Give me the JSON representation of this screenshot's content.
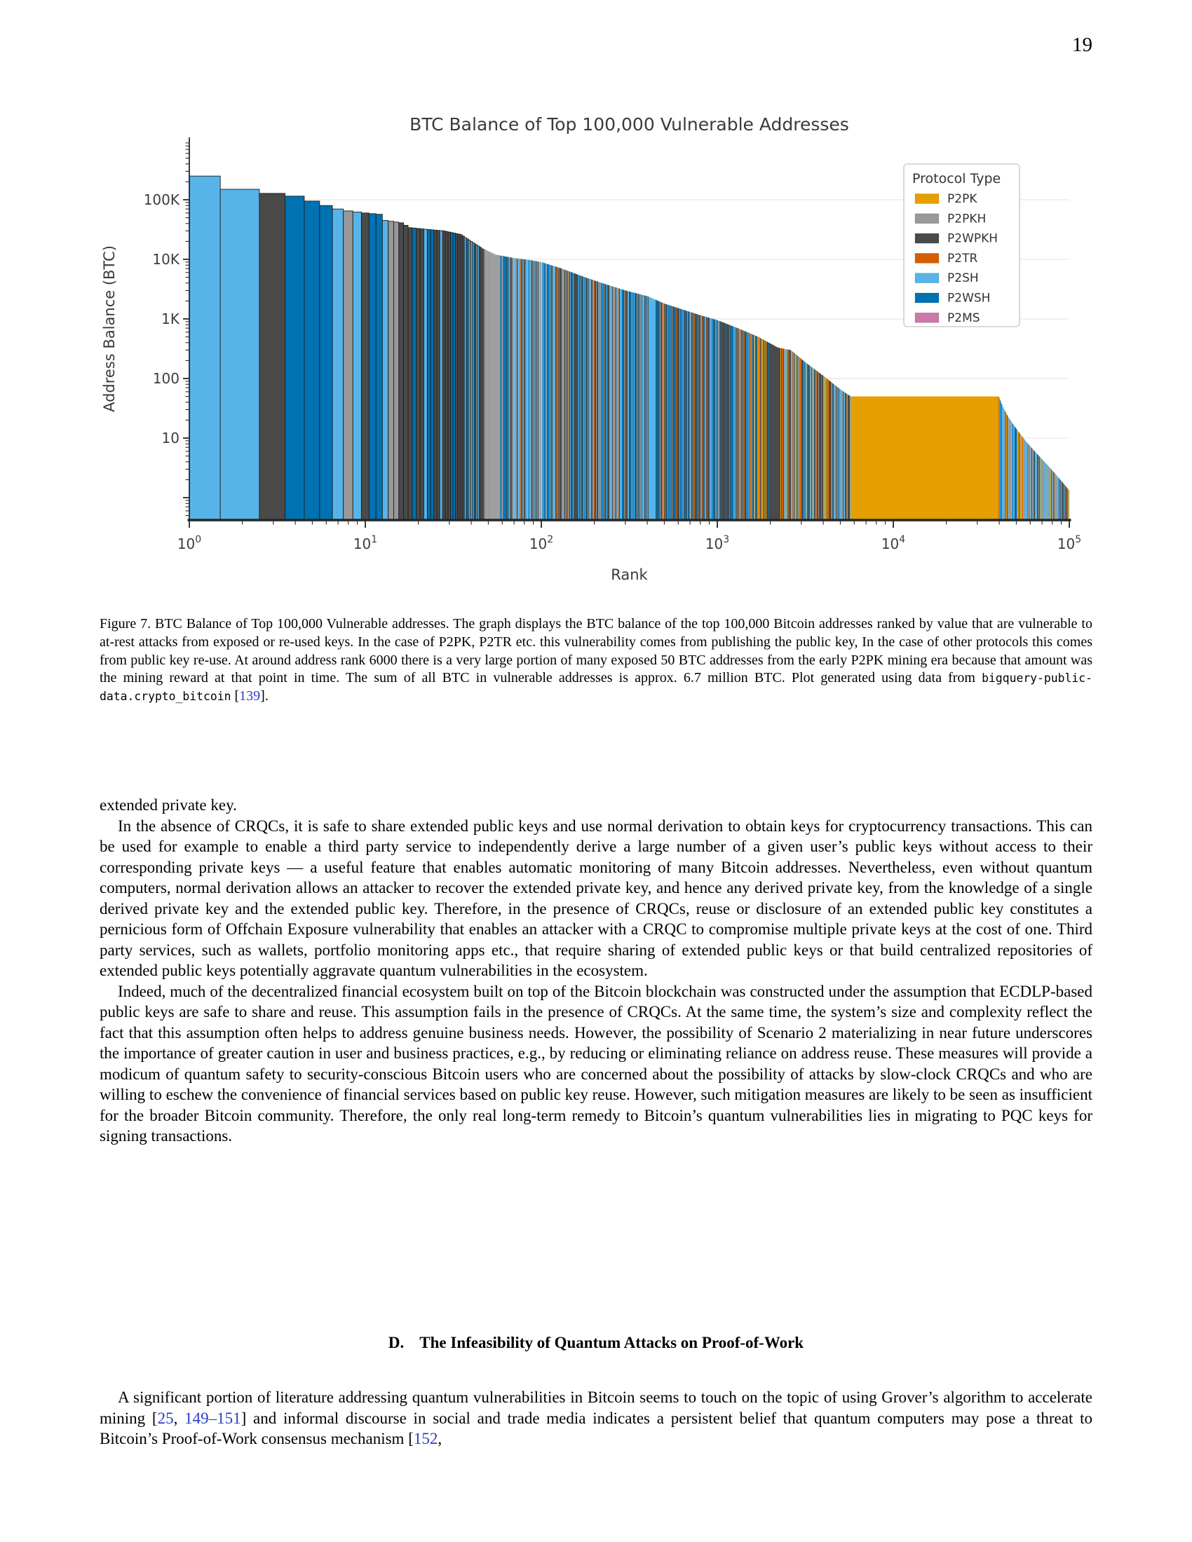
{
  "page": {
    "number": "19"
  },
  "colors": {
    "link": "#2b3cc8",
    "chart_text": "#3a3a3a",
    "tick_text": "#3d3d3d",
    "grid": "#e7e7e7",
    "spine": "#262626"
  },
  "chart_data": {
    "type": "bar",
    "title": "BTC Balance of Top 100,000 Vulnerable Addresses",
    "xlabel": "Rank",
    "ylabel": "Address Balance (BTC)",
    "x_scale": "log",
    "y_scale": "log",
    "x_range": [
      1,
      100000
    ],
    "x_tick_exponents": [
      0,
      1,
      2,
      3,
      4,
      5
    ],
    "y_ticks": [
      {
        "label": "100K",
        "value": 100000
      },
      {
        "label": "10K",
        "value": 10000
      },
      {
        "label": "1K",
        "value": 1000
      },
      {
        "label": "100",
        "value": 100
      },
      {
        "label": "10",
        "value": 10
      }
    ],
    "grid": "horizontal-major",
    "legend": {
      "title": "Protocol Type",
      "position": "upper-right",
      "entries": [
        {
          "label": "P2PK",
          "color": "#E69F00"
        },
        {
          "label": "P2PKH",
          "color": "#999999"
        },
        {
          "label": "P2WPKH",
          "color": "#4A4A4A"
        },
        {
          "label": "P2TR",
          "color": "#D55E00"
        },
        {
          "label": "P2SH",
          "color": "#56B4E9"
        },
        {
          "label": "P2WSH",
          "color": "#0072B2"
        },
        {
          "label": "P2MS",
          "color": "#CC79A7"
        }
      ]
    },
    "envelope_rank_btc": [
      [
        1,
        250000
      ],
      [
        2,
        150000
      ],
      [
        3,
        128000
      ],
      [
        4,
        115000
      ],
      [
        5,
        95000
      ],
      [
        6,
        80000
      ],
      [
        7,
        70000
      ],
      [
        8,
        65000
      ],
      [
        10,
        60000
      ],
      [
        12,
        57000
      ],
      [
        13,
        45000
      ],
      [
        16,
        41000
      ],
      [
        18,
        34000
      ],
      [
        22,
        32000
      ],
      [
        28,
        30000
      ],
      [
        35,
        26000
      ],
      [
        40,
        20000
      ],
      [
        45,
        16000
      ],
      [
        55,
        12000
      ],
      [
        70,
        10500
      ],
      [
        85,
        9800
      ],
      [
        100,
        9000
      ],
      [
        130,
        7000
      ],
      [
        170,
        5200
      ],
      [
        220,
        4000
      ],
      [
        300,
        3000
      ],
      [
        400,
        2400
      ],
      [
        500,
        1800
      ],
      [
        650,
        1400
      ],
      [
        800,
        1150
      ],
      [
        1000,
        950
      ],
      [
        1300,
        700
      ],
      [
        1700,
        500
      ],
      [
        2200,
        330
      ],
      [
        2600,
        300
      ],
      [
        3200,
        180
      ],
      [
        4000,
        110
      ],
      [
        5000,
        65
      ],
      [
        5700,
        50
      ],
      [
        39500,
        50
      ],
      [
        42000,
        32
      ],
      [
        45000,
        22
      ],
      [
        50000,
        14
      ],
      [
        57000,
        8.5
      ],
      [
        65000,
        5.5
      ],
      [
        75000,
        3.5
      ],
      [
        85000,
        2.3
      ],
      [
        100000,
        1.3
      ]
    ],
    "plateau": {
      "start_rank": 5700,
      "end_rank": 39500,
      "value_btc": 50,
      "protocol": "P2PK"
    },
    "total_vulnerable_btc": "approx. 6.7 million BTC",
    "rank_protocol_overrides": [
      {
        "from": 1,
        "to": 2,
        "p": "P2SH"
      },
      {
        "from": 3,
        "to": 3,
        "p": "P2WPKH"
      },
      {
        "from": 4,
        "to": 6,
        "p": "P2WSH"
      },
      {
        "from": 7,
        "to": 7,
        "p": "P2SH"
      },
      {
        "from": 8,
        "to": 8,
        "p": "P2PKH"
      },
      {
        "from": 9,
        "to": 9,
        "p": "P2SH"
      },
      {
        "from": 10,
        "to": 10,
        "p": "P2WPKH"
      },
      {
        "from": 11,
        "to": 12,
        "p": "P2WSH"
      },
      {
        "from": 13,
        "to": 13,
        "p": "P2SH"
      },
      {
        "from": 14,
        "to": 15,
        "p": "P2PKH"
      },
      {
        "from": 16,
        "to": 18,
        "p": "P2WPKH"
      },
      {
        "from": 19,
        "to": 19,
        "p": "P2WSH"
      },
      {
        "from": 20,
        "to": 21,
        "p": "P2WPKH"
      },
      {
        "from": 22,
        "to": 22,
        "p": "P2SH"
      },
      {
        "from": 23,
        "to": 24,
        "p": "P2WSH"
      },
      {
        "from": 25,
        "to": 26,
        "p": "P2WPKH"
      },
      {
        "from": 27,
        "to": 27,
        "p": "P2SH"
      },
      {
        "from": 28,
        "to": 30,
        "p": "P2WPKH"
      },
      {
        "from": 31,
        "to": 32,
        "p": "P2WSH"
      },
      {
        "from": 33,
        "to": 35,
        "p": "P2WPKH"
      },
      {
        "from": 48,
        "to": 58,
        "p": "P2PKH"
      },
      {
        "from": 405,
        "to": 445,
        "p": "P2SH"
      },
      {
        "from": 1950,
        "to": 2250,
        "p": "P2WPKH"
      }
    ],
    "color_regions": [
      {
        "upto_log": 1.56,
        "weights": {
          "P2WPKH": 0.35,
          "P2WSH": 0.25,
          "P2PKH": 0.2,
          "P2SH": 0.2
        }
      },
      {
        "upto_log": 2.0,
        "weights": {
          "P2WPKH": 0.3,
          "P2WSH": 0.2,
          "P2PKH": 0.24,
          "P2SH": 0.2,
          "P2TR": 0.06
        }
      },
      {
        "upto_log": 2.6,
        "weights": {
          "P2WPKH": 0.3,
          "P2WSH": 0.22,
          "P2PKH": 0.17,
          "P2SH": 0.22,
          "P2TR": 0.09
        }
      },
      {
        "upto_log": 3.2,
        "weights": {
          "P2WPKH": 0.32,
          "P2WSH": 0.22,
          "P2PKH": 0.15,
          "P2SH": 0.2,
          "P2TR": 0.11
        }
      },
      {
        "upto_log": 3.756,
        "weights": {
          "P2WPKH": 0.3,
          "P2WSH": 0.18,
          "P2PKH": 0.13,
          "P2SH": 0.17,
          "P2TR": 0.13,
          "P2PK": 0.09
        }
      },
      {
        "upto_log": 4.75,
        "weights": {
          "P2SH": 0.34,
          "P2TR": 0.16,
          "P2PKH": 0.14,
          "P2WPKH": 0.16,
          "P2PK": 0.12,
          "P2WSH": 0.08
        }
      },
      {
        "upto_log": 5.01,
        "weights": {
          "P2SH": 0.38,
          "P2PKH": 0.2,
          "P2TR": 0.12,
          "P2WPKH": 0.2,
          "P2PK": 0.05,
          "P2WSH": 0.05
        }
      }
    ]
  },
  "figure_caption": [
    {
      "t": "Figure 7. BTC Balance of Top 100,000 Vulnerable addresses. The graph displays the BTC balance of the top 100,000 Bitcoin addresses ranked by value that are vulnerable to at-rest attacks from exposed or re-used keys. In the case of P2PK, P2TR etc. this vulnerability comes from publishing the public key, In the case of other protocols this comes from public key re-use. At around address rank 6000 there is a very large portion of many exposed 50 BTC addresses from the early P2PK mining era because that amount was the mining reward at that point in time. The sum of all BTC in vulnerable addresses is approx. 6.7 million BTC. Plot generated using data from ",
      "s": "normal"
    },
    {
      "t": "bigquery-public-data.crypto_bitcoin",
      "s": "mono"
    },
    {
      "t": " [",
      "s": "normal"
    },
    {
      "t": "139",
      "s": "cite"
    },
    {
      "t": "].",
      "s": "normal"
    }
  ],
  "body": {
    "paragraphs": [
      [
        {
          "t": "extended private key.",
          "s": "normal"
        }
      ],
      [
        {
          "t": "In the absence of CRQCs, it is safe to share extended public keys and use normal derivation to obtain keys for cryptocurrency transactions. This can be used for example to enable a third party service to independently derive a large number of a given user’s public keys without access to their corresponding private keys — a useful feature that enables automatic monitoring of many Bitcoin addresses. Nevertheless, even without quantum computers, normal derivation allows an attacker to recover the extended private key, and hence any derived private key, from the knowledge of a single derived private key and the extended public key. Therefore, in the presence of CRQCs, reuse or disclosure of an extended public key constitutes a pernicious form of Offchain Exposure vulnerability that enables an attacker with a CRQC to compromise multiple private keys at the cost of one. Third party services, such as wallets, portfolio monitoring apps etc., that require sharing of extended public keys or that build centralized repositories of extended public keys potentially aggravate quantum vulnerabilities in the ecosystem.",
          "s": "normal"
        }
      ],
      [
        {
          "t": "Indeed, much of the decentralized financial ecosystem built on top of the Bitcoin blockchain was constructed under the assumption that ECDLP-based public keys are safe to share and reuse. This assumption fails in the presence of CRQCs. At the same time, the system’s size and complexity reflect the fact that this assumption often helps to address genuine business needs. However, the possibility of Scenario 2 materializing in near future underscores the importance of greater caution in user and business practices, e.g., by reducing or eliminating reliance on address reuse. These measures will provide a modicum of quantum safety to security-conscious Bitcoin users who are concerned about the possibility of attacks by slow-clock CRQCs and who are willing to eschew the convenience of financial services based on public key reuse. However, such mitigation measures are likely to be seen as insufficient for the broader Bitcoin community. Therefore, the only real long-term remedy to Bitcoin’s quantum vulnerabilities lies in migrating to PQC keys for signing transactions.",
          "s": "normal"
        }
      ],
      [
        {
          "t": "A significant portion of literature addressing quantum vulnerabilities in Bitcoin seems to touch on the topic of using Grover’s algorithm to accelerate mining [",
          "s": "normal"
        },
        {
          "t": "25",
          "s": "cite"
        },
        {
          "t": ", ",
          "s": "normal"
        },
        {
          "t": "149–151",
          "s": "cite"
        },
        {
          "t": "] and informal discourse in social and trade media indicates a persistent belief that quantum computers may pose a threat to Bitcoin’s Proof-of-Work consensus mechanism [",
          "s": "normal"
        },
        {
          "t": "152",
          "s": "cite"
        },
        {
          "t": ",",
          "s": "normal"
        }
      ]
    ]
  },
  "section": {
    "label": "D.",
    "title": "The Infeasibility of Quantum Attacks on Proof-of-Work"
  }
}
